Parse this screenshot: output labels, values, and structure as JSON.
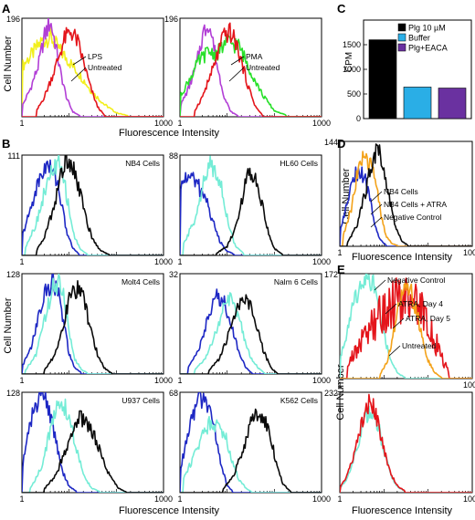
{
  "panel_letters": [
    "A",
    "B",
    "C",
    "D",
    "E"
  ],
  "colors": {
    "yellow": "#f2ef1c",
    "red": "#e4151b",
    "magenta": "#b23fd6",
    "green": "#28e02a",
    "aqua": "#74ecd6",
    "blue": "#1e28c4",
    "black": "#0a0a0a",
    "orange": "#f3a21a",
    "bar_black": "#000000",
    "bar_blue": "#2aaee6",
    "bar_purple": "#6a31a0"
  },
  "axis_text": {
    "x_title": "Fluorescence Intensity",
    "y_title": "Cell Number",
    "c_y_title": "CPM",
    "x_min": "1",
    "x_max": "1000"
  },
  "chart_data": [
    {
      "id": "A-left",
      "type": "line",
      "ymax_label": "196",
      "xlabel": "",
      "ylabel": "Cell Number",
      "x_scale": "log",
      "xlim": [
        1,
        1000
      ],
      "ylim": [
        0,
        196
      ],
      "annotations": [
        "LPS",
        "Untreated"
      ],
      "series": [
        {
          "color": "yellow",
          "x": [
            1.0,
            1.5,
            2.5,
            4,
            6,
            10,
            18,
            30,
            55,
            100,
            180
          ],
          "y": [
            100,
            120,
            148,
            160,
            135,
            110,
            80,
            50,
            25,
            8,
            2
          ]
        },
        {
          "color": "magenta",
          "x": [
            1.0,
            1.5,
            2.2,
            3,
            4,
            5,
            6.5,
            9,
            12,
            17
          ],
          "y": [
            20,
            55,
            100,
            160,
            190,
            150,
            90,
            35,
            10,
            2
          ]
        },
        {
          "color": "red",
          "x": [
            2,
            3,
            5,
            8,
            11,
            15,
            20,
            28,
            40,
            55
          ],
          "y": [
            10,
            40,
            95,
            155,
            170,
            150,
            110,
            60,
            20,
            4
          ]
        }
      ]
    },
    {
      "id": "A-right",
      "type": "line",
      "ymax_label": "196",
      "xlabel": "",
      "ylabel": "",
      "x_scale": "log",
      "xlim": [
        1,
        1000
      ],
      "ylim": [
        0,
        196
      ],
      "annotations": [
        "PMA",
        "Untreated"
      ],
      "series": [
        {
          "color": "magenta",
          "x": [
            1.0,
            1.5,
            2.2,
            3,
            4,
            5,
            6.5,
            9,
            12,
            17
          ],
          "y": [
            20,
            55,
            100,
            160,
            190,
            150,
            90,
            35,
            10,
            2
          ]
        },
        {
          "color": "green",
          "x": [
            1.0,
            1.5,
            2.5,
            4,
            6,
            10,
            18,
            30,
            55,
            100,
            180
          ],
          "y": [
            40,
            70,
            110,
            130,
            125,
            150,
            140,
            95,
            45,
            12,
            3
          ]
        },
        {
          "color": "red",
          "x": [
            2,
            3,
            5,
            8,
            11,
            15,
            20,
            28,
            40,
            55
          ],
          "y": [
            10,
            40,
            95,
            155,
            170,
            150,
            110,
            60,
            20,
            4
          ]
        }
      ]
    },
    {
      "id": "C",
      "type": "bar",
      "categories": [
        "Plg 10 µM",
        "Buffer",
        "Plg+EACA"
      ],
      "values": [
        1600,
        640,
        620
      ],
      "bar_colors": [
        "bar_black",
        "bar_blue",
        "bar_purple"
      ],
      "ylabel": "CPM",
      "ylim": [
        0,
        2000
      ],
      "yticks": [
        0,
        500,
        1000,
        1500
      ],
      "legend": "top-right"
    },
    {
      "id": "B-NB4",
      "type": "line",
      "title": "NB4 Cells",
      "ymax_label": "111",
      "ylabel": "",
      "x_scale": "log",
      "xlim": [
        1,
        1000
      ],
      "ylim": [
        0,
        111
      ],
      "series": [
        {
          "color": "blue",
          "x": [
            1.0,
            1.5,
            2.2,
            3.2,
            4.2,
            5.5,
            7,
            9,
            12,
            16
          ],
          "y": [
            20,
            50,
            80,
            100,
            95,
            85,
            55,
            25,
            8,
            2
          ]
        },
        {
          "color": "aqua",
          "x": [
            1.2,
            2,
            3,
            4.5,
            6,
            8,
            10,
            13,
            18,
            25
          ],
          "y": [
            10,
            35,
            70,
            95,
            100,
            80,
            50,
            20,
            6,
            1
          ]
        },
        {
          "color": "black",
          "x": [
            2,
            3,
            4.5,
            6.5,
            9,
            12,
            16,
            22,
            30,
            45,
            70
          ],
          "y": [
            5,
            20,
            50,
            85,
            110,
            100,
            75,
            45,
            20,
            6,
            1
          ]
        }
      ]
    },
    {
      "id": "B-HL60",
      "type": "line",
      "title": "HL60 Cells",
      "ymax_label": "88",
      "ylabel": "",
      "x_scale": "log",
      "xlim": [
        1,
        1000
      ],
      "ylim": [
        0,
        88
      ],
      "series": [
        {
          "color": "blue",
          "x": [
            1.0,
            1.3,
            1.8,
            2.5,
            3.5,
            5,
            7,
            10,
            14
          ],
          "y": [
            55,
            70,
            68,
            60,
            50,
            30,
            12,
            4,
            1
          ]
        },
        {
          "color": "aqua",
          "x": [
            1.2,
            2,
            3,
            4.5,
            6,
            8,
            11,
            15,
            22
          ],
          "y": [
            10,
            30,
            60,
            80,
            75,
            55,
            25,
            8,
            2
          ]
        },
        {
          "color": "black",
          "x": [
            6,
            10,
            15,
            22,
            30,
            40,
            55,
            75,
            100,
            150
          ],
          "y": [
            2,
            8,
            25,
            55,
            75,
            70,
            45,
            20,
            6,
            1
          ]
        }
      ]
    },
    {
      "id": "B-Molt4",
      "type": "line",
      "title": "Molt4 Cells",
      "ymax_label": "128",
      "ylabel": "Cell Number",
      "x_scale": "log",
      "xlim": [
        1,
        1000
      ],
      "ylim": [
        0,
        128
      ],
      "series": [
        {
          "color": "blue",
          "x": [
            1.0,
            1.5,
            2.2,
            3.2,
            4.5,
            6,
            8,
            10,
            13,
            18
          ],
          "y": [
            10,
            30,
            70,
            105,
            120,
            100,
            60,
            25,
            8,
            2
          ]
        },
        {
          "color": "aqua",
          "x": [
            1.2,
            2,
            3,
            4.5,
            6,
            8,
            10,
            13,
            18,
            25
          ],
          "y": [
            5,
            25,
            70,
            110,
            115,
            95,
            55,
            20,
            6,
            1
          ]
        },
        {
          "color": "black",
          "x": [
            3,
            5,
            8,
            11,
            15,
            20,
            28,
            40,
            55,
            80
          ],
          "y": [
            5,
            25,
            70,
            105,
            110,
            95,
            60,
            25,
            8,
            1
          ]
        }
      ]
    },
    {
      "id": "B-Nalm6",
      "type": "line",
      "title": "Nalm 6 Cells",
      "ymax_label": "32",
      "ylabel": "",
      "x_scale": "log",
      "xlim": [
        1,
        1000
      ],
      "ylim": [
        0,
        32
      ],
      "series": [
        {
          "color": "blue",
          "x": [
            1.5,
            2.5,
            4,
            6,
            8,
            10,
            13,
            18,
            25,
            35
          ],
          "y": [
            2,
            8,
            18,
            25,
            24,
            20,
            14,
            7,
            2,
            0
          ]
        },
        {
          "color": "aqua",
          "x": [
            2,
            3.5,
            6,
            9,
            12,
            16,
            22,
            30,
            45,
            65
          ],
          "y": [
            1,
            5,
            14,
            22,
            24,
            20,
            13,
            6,
            2,
            0
          ]
        },
        {
          "color": "black",
          "x": [
            4,
            7,
            11,
            16,
            22,
            30,
            42,
            60,
            85,
            120
          ],
          "y": [
            1,
            5,
            13,
            20,
            24,
            22,
            15,
            7,
            2,
            0
          ]
        }
      ]
    },
    {
      "id": "B-U937",
      "type": "line",
      "title": "U937 Cells",
      "ymax_label": "128",
      "ylabel": "",
      "x_scale": "log",
      "xlim": [
        1,
        1000
      ],
      "ylim": [
        0,
        128
      ],
      "series": [
        {
          "color": "blue",
          "x": [
            1.0,
            1.4,
            2,
            2.8,
            4,
            5.5,
            7.5,
            10,
            14
          ],
          "y": [
            30,
            80,
            115,
            125,
            100,
            60,
            25,
            8,
            2
          ]
        },
        {
          "color": "aqua",
          "x": [
            1.5,
            2.5,
            4,
            6,
            8,
            11,
            15,
            21,
            30,
            45
          ],
          "y": [
            5,
            30,
            80,
            115,
            110,
            85,
            50,
            20,
            6,
            1
          ]
        },
        {
          "color": "black",
          "x": [
            3,
            5,
            8,
            12,
            17,
            24,
            35,
            50,
            75,
            110,
            160
          ],
          "y": [
            5,
            20,
            50,
            80,
            95,
            90,
            70,
            45,
            20,
            6,
            1
          ]
        }
      ]
    },
    {
      "id": "B-K562",
      "type": "line",
      "title": "K562 Cells",
      "ymax_label": "68",
      "ylabel": "",
      "x_scale": "log",
      "xlim": [
        1,
        1000
      ],
      "ylim": [
        0,
        68
      ],
      "series": [
        {
          "color": "blue",
          "x": [
            1.0,
            1.5,
            2.2,
            3.2,
            4.5,
            6,
            8,
            10,
            13
          ],
          "y": [
            15,
            40,
            60,
            65,
            55,
            35,
            15,
            5,
            1
          ]
        },
        {
          "color": "aqua",
          "x": [
            1.2,
            2,
            3,
            4.5,
            6.5,
            9,
            12,
            17,
            25,
            35
          ],
          "y": [
            10,
            25,
            40,
            48,
            46,
            40,
            25,
            10,
            3,
            0
          ]
        },
        {
          "color": "black",
          "x": [
            8,
            14,
            22,
            32,
            45,
            60,
            80,
            110,
            150,
            220
          ],
          "y": [
            2,
            12,
            30,
            48,
            55,
            52,
            40,
            20,
            6,
            1
          ]
        }
      ]
    },
    {
      "id": "D",
      "type": "line",
      "ymax_label": "144",
      "xlabel": "Fluorescence Intensity",
      "ylabel": "Cell Number",
      "x_scale": "log",
      "xlim": [
        1,
        1000
      ],
      "ylim": [
        0,
        144
      ],
      "annotations": [
        "NB4 Cells",
        "NB4 Cells + ATRA",
        "Negative Control"
      ],
      "series": [
        {
          "color": "blue",
          "x": [
            1.0,
            1.4,
            2,
            2.8,
            3.8,
            5,
            6.5,
            8.5,
            11
          ],
          "y": [
            20,
            55,
            95,
            105,
            90,
            60,
            25,
            8,
            2
          ]
        },
        {
          "color": "orange",
          "x": [
            1.2,
            1.8,
            2.6,
            3.6,
            4.8,
            6.5,
            8.5,
            11,
            15,
            20
          ],
          "y": [
            15,
            50,
            105,
            125,
            115,
            85,
            45,
            15,
            4,
            1
          ]
        },
        {
          "color": "black",
          "x": [
            1.5,
            2.5,
            4,
            5.5,
            7.5,
            10,
            13,
            18,
            25,
            35
          ],
          "y": [
            5,
            30,
            80,
            120,
            135,
            110,
            70,
            30,
            8,
            1
          ]
        }
      ]
    },
    {
      "id": "E-top",
      "type": "line",
      "ymax_label": "172",
      "ylabel": "Cell Number",
      "x_scale": "log",
      "xlim": [
        1,
        1000
      ],
      "ylim": [
        0,
        172
      ],
      "annotations": [
        "Negative Control",
        "ATRA, Day 4",
        "ATRA, Day 5",
        "Untreated"
      ],
      "series": [
        {
          "color": "aqua",
          "x": [
            1.0,
            1.5,
            2.2,
            3.2,
            4.5,
            6,
            8,
            11,
            15,
            21,
            30
          ],
          "y": [
            30,
            80,
            130,
            160,
            170,
            150,
            110,
            60,
            25,
            8,
            2
          ]
        },
        {
          "color": "red",
          "x": [
            1.5,
            3,
            6,
            10,
            15,
            22,
            30,
            45,
            65,
            90,
            130,
            200,
            300
          ],
          "y": [
            20,
            60,
            90,
            110,
            120,
            130,
            140,
            125,
            110,
            95,
            70,
            35,
            10
          ]
        },
        {
          "color": "orange",
          "x": [
            8,
            12,
            16,
            22,
            30,
            40,
            55,
            75,
            100,
            140,
            200
          ],
          "y": [
            5,
            30,
            70,
            120,
            150,
            145,
            110,
            65,
            30,
            10,
            2
          ]
        }
      ]
    },
    {
      "id": "E-bottom",
      "type": "line",
      "ymax_label": "232",
      "xlabel": "Fluorescence Intensity",
      "ylabel": "",
      "x_scale": "log",
      "xlim": [
        1,
        1000
      ],
      "ylim": [
        0,
        232
      ],
      "series": [
        {
          "color": "aqua",
          "x": [
            1.0,
            1.5,
            2.2,
            3.2,
            4.5,
            6,
            8,
            11,
            15,
            21,
            30
          ],
          "y": [
            10,
            35,
            90,
            150,
            190,
            185,
            140,
            80,
            35,
            12,
            3
          ]
        },
        {
          "color": "red",
          "x": [
            1.0,
            1.5,
            2.2,
            3.2,
            4.5,
            6,
            8,
            11,
            15,
            21,
            30
          ],
          "y": [
            12,
            40,
            100,
            160,
            205,
            195,
            145,
            85,
            40,
            14,
            4
          ]
        }
      ]
    }
  ]
}
